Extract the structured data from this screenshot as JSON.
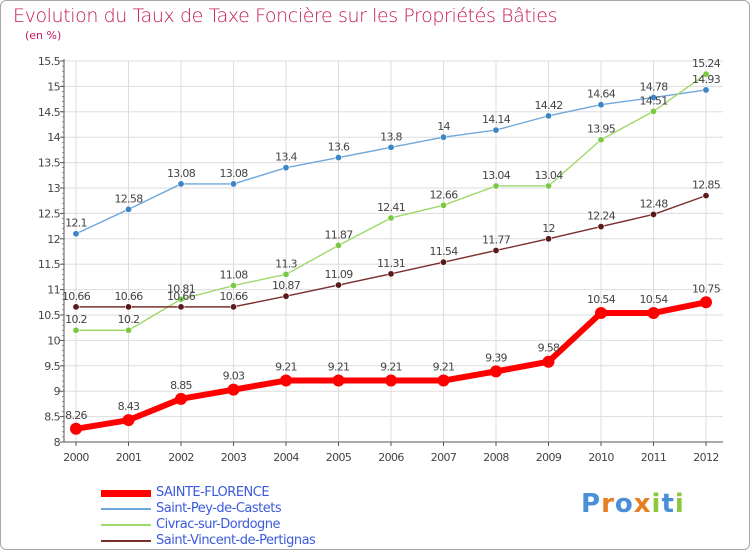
{
  "header": {
    "title": "Evolution du Taux de Taxe Foncière sur les Propriétés Bâties",
    "unit": "(en %)"
  },
  "colors": {
    "title": "#c2185b",
    "axis": "#555555",
    "grid": "#dddddd",
    "legend_text": "#3b5bdb"
  },
  "logo": {
    "letters": [
      "P",
      "r",
      "o",
      "x",
      "i",
      "t",
      "i"
    ],
    "colors": [
      "#4a90d9",
      "#e67e22",
      "#4a90d9",
      "#e67e22",
      "#8dc63f",
      "#4a90d9",
      "#8dc63f"
    ]
  },
  "chart_data": {
    "type": "line",
    "title": "Evolution du Taux de Taxe Foncière sur les Propriétés Bâties",
    "ylabel": "(en %)",
    "x": [
      "2000",
      "2001",
      "2002",
      "2003",
      "2004",
      "2005",
      "2006",
      "2007",
      "2008",
      "2009",
      "2010",
      "2011",
      "2012"
    ],
    "ylim": [
      8,
      15.5
    ],
    "yticks": [
      "8",
      "8.5",
      "9",
      "9.5",
      "10",
      "10.5",
      "11",
      "11.5",
      "12",
      "12.5",
      "13",
      "13.5",
      "14",
      "14.5",
      "15",
      "15.5"
    ],
    "grid": true,
    "legend_position": "bottom-left",
    "series": [
      {
        "name": "SAINTE-FLORENCE",
        "color": "#ff0000",
        "marker_color": "#ff0000",
        "values": [
          8.26,
          8.43,
          8.85,
          9.03,
          9.21,
          9.21,
          9.21,
          9.21,
          9.39,
          9.58,
          10.54,
          10.54,
          10.75
        ],
        "labels": [
          "8.26",
          "8.43",
          "8.85",
          "9.03",
          "9.21",
          "9.21",
          "9.21",
          "9.21",
          "9.39",
          "9.58",
          "10.54",
          "10.54",
          "10.75"
        ]
      },
      {
        "name": "Saint-Pey-de-Castets",
        "color": "#6fa8dc",
        "marker_color": "#3d85c6",
        "values": [
          12.1,
          12.58,
          13.08,
          13.08,
          13.4,
          13.6,
          13.8,
          14,
          14.14,
          14.42,
          14.64,
          14.78,
          14.93
        ],
        "labels": [
          "12.1",
          "12.58",
          "13.08",
          "13.08",
          "13.4",
          "13.6",
          "13.8",
          "14",
          "14.14",
          "14.42",
          "14.64",
          "14.78",
          "14.93"
        ]
      },
      {
        "name": "Civrac-sur-Dordogne",
        "color": "#9ed86a",
        "marker_color": "#7ac943",
        "values": [
          10.2,
          10.2,
          10.81,
          11.08,
          11.3,
          11.87,
          12.41,
          12.66,
          13.04,
          13.04,
          13.95,
          14.51,
          15.24
        ],
        "labels": [
          "10.2",
          "10.2",
          "10.81",
          "11.08",
          "11.3",
          "11.87",
          "12.41",
          "12.66",
          "13.04",
          "13.04",
          "13.95",
          "14.51",
          "15.24"
        ]
      },
      {
        "name": "Saint-Vincent-de-Pertignas",
        "color": "#7b2e2e",
        "marker_color": "#5a1a1a",
        "values": [
          10.66,
          10.66,
          10.66,
          10.66,
          10.87,
          11.09,
          11.31,
          11.54,
          11.77,
          12,
          12.24,
          12.48,
          12.85
        ],
        "labels": [
          "10.66",
          "10.66",
          "10.66",
          "10.66",
          "10.87",
          "11.09",
          "11.31",
          "11.54",
          "11.77",
          "12",
          "12.24",
          "12.48",
          "12.85"
        ]
      }
    ]
  }
}
